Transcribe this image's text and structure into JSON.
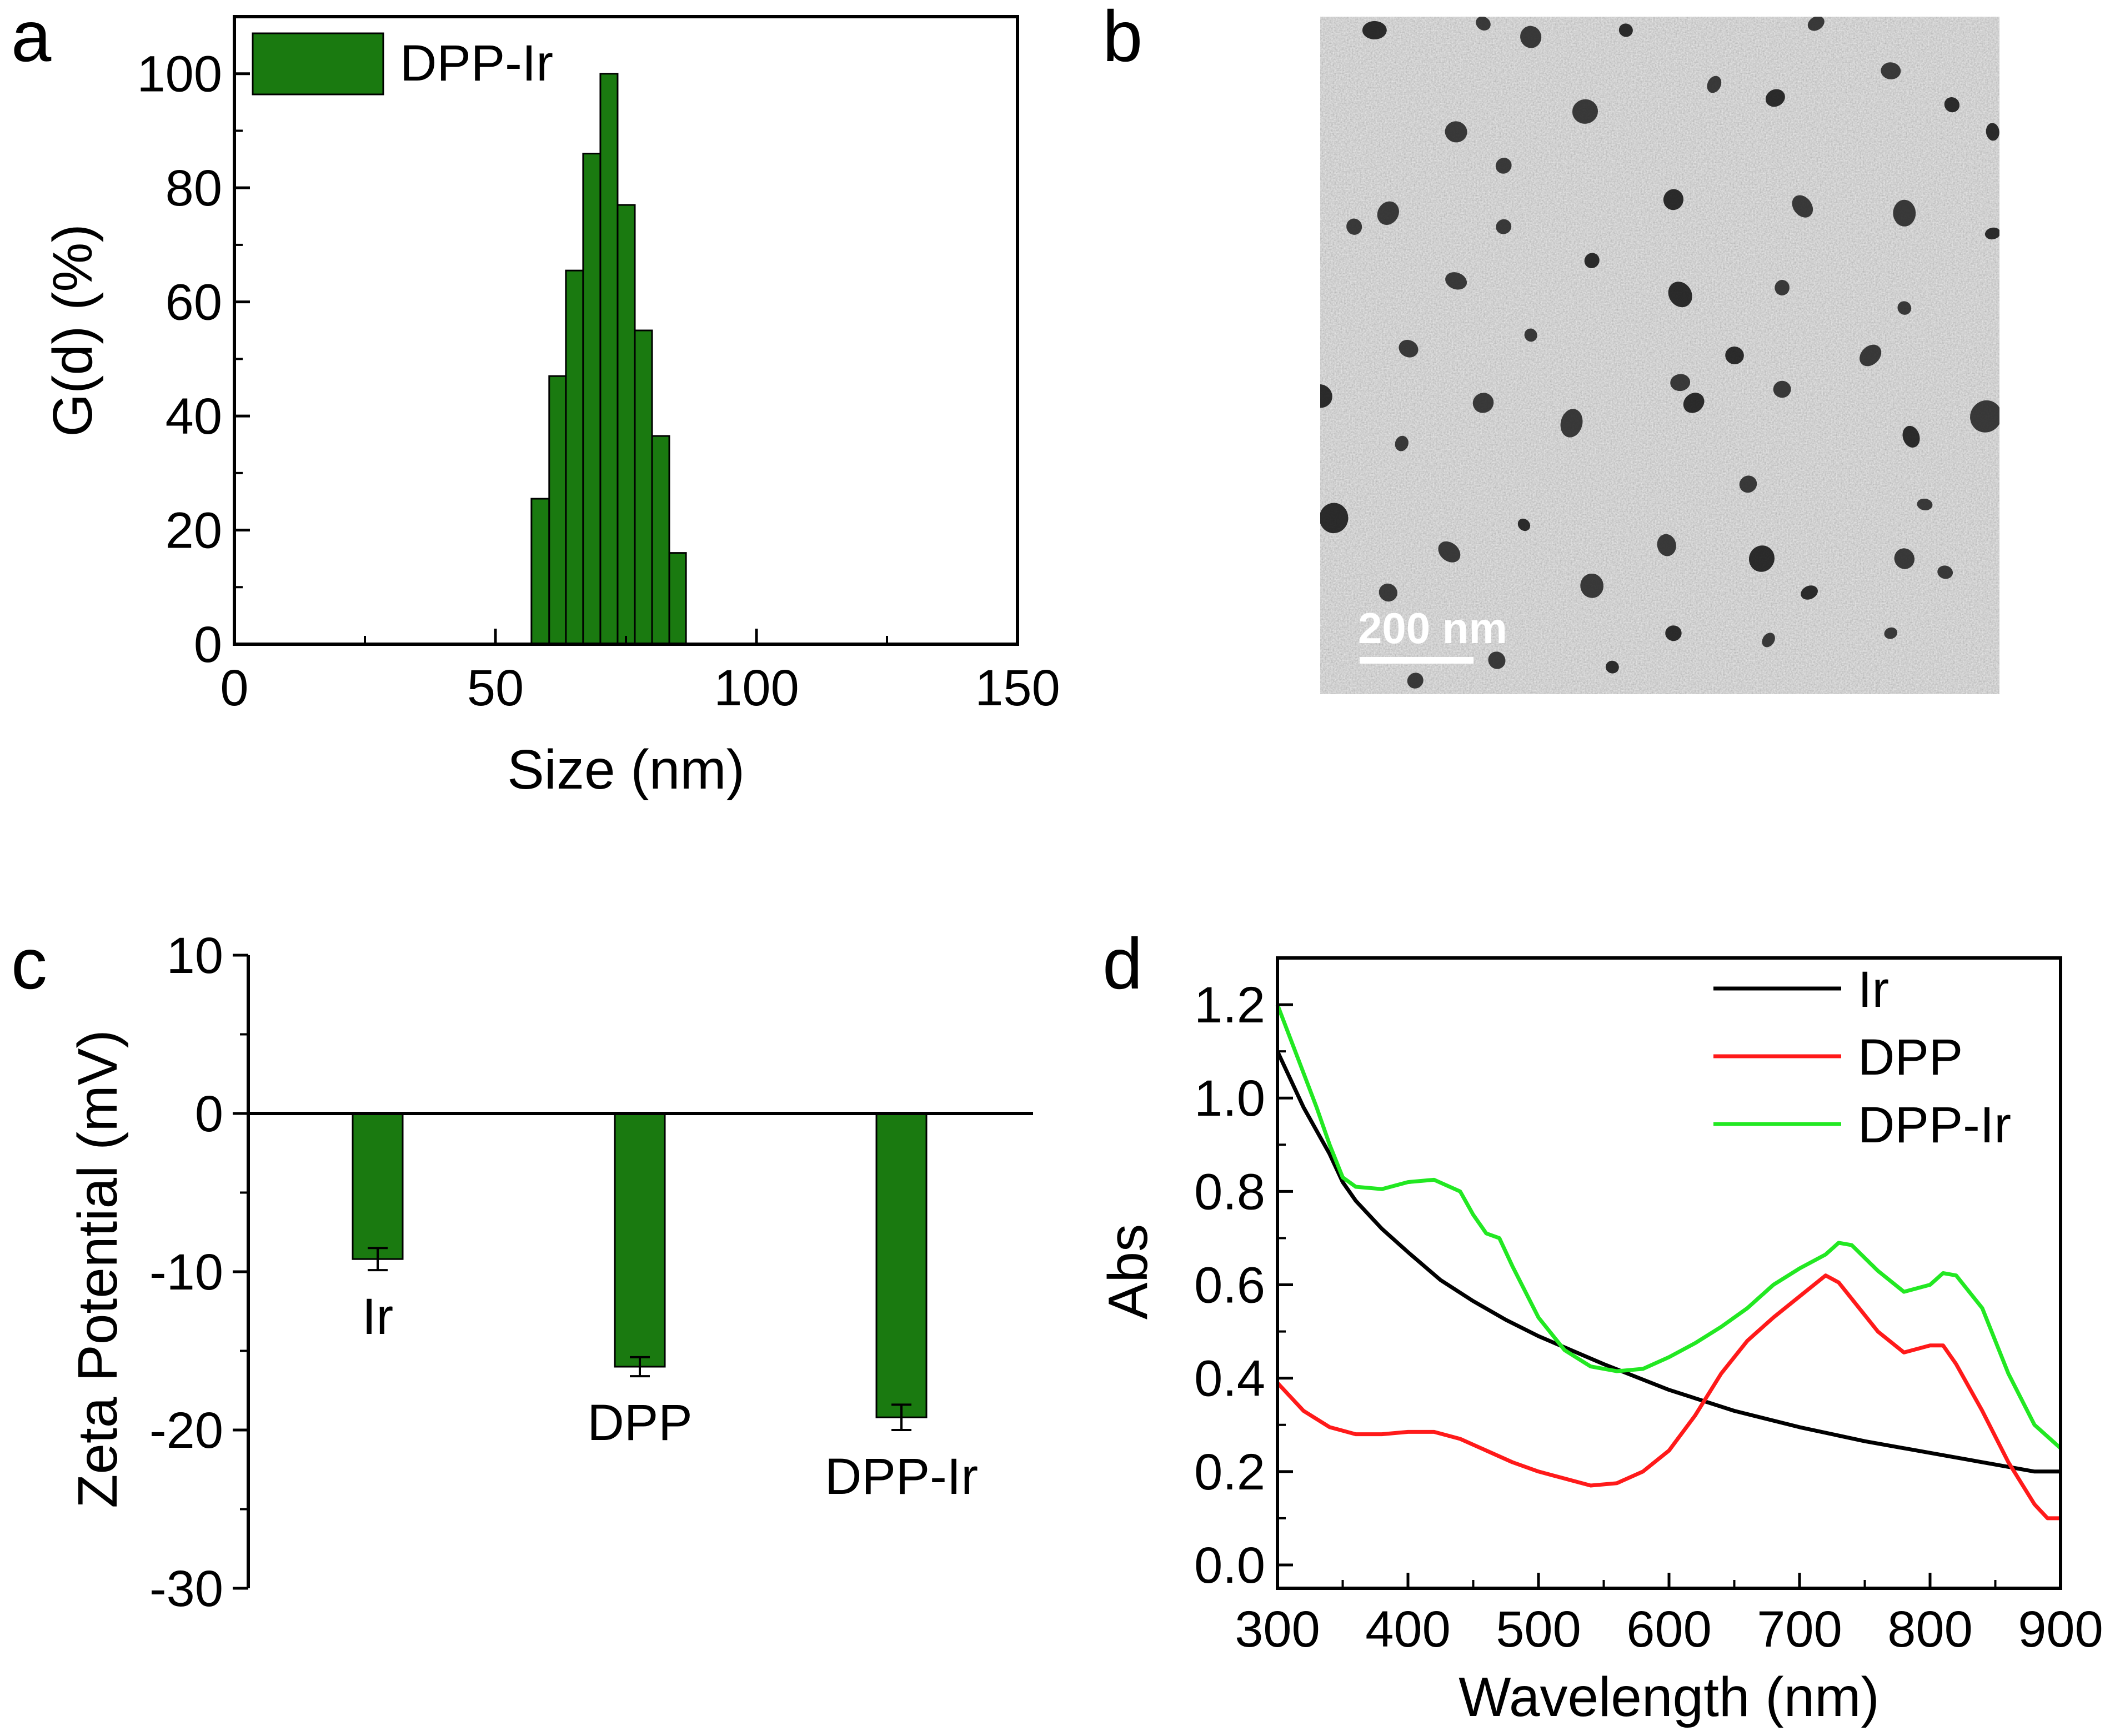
{
  "colors": {
    "bar_green": "#1a7a10",
    "black": "#000000",
    "red": "#ff1a1a",
    "green_line": "#22e822"
  },
  "panels": {
    "a": "a",
    "b": "b",
    "c": "c",
    "d": "d"
  },
  "chart_data": [
    {
      "panel": "a",
      "type": "bar",
      "xlabel": "Size (nm)",
      "ylabel": "G(d) (%)",
      "xlim": [
        0,
        150
      ],
      "ylim": [
        0,
        110
      ],
      "xticks": [
        "0",
        "50",
        "100",
        "150"
      ],
      "yticks": [
        "0",
        "20",
        "40",
        "60",
        "80",
        "100"
      ],
      "legend": [
        "DPP-Ir"
      ],
      "legend_position": "top-left",
      "series": [
        {
          "name": "DPP-Ir",
          "bins": [
            {
              "x0": 56.9,
              "x1": 60.3,
              "value": 25.5
            },
            {
              "x0": 60.3,
              "x1": 63.5,
              "value": 47
            },
            {
              "x0": 63.5,
              "x1": 66.8,
              "value": 65.5
            },
            {
              "x0": 66.8,
              "x1": 70.1,
              "value": 86
            },
            {
              "x0": 70.1,
              "x1": 73.4,
              "value": 100
            },
            {
              "x0": 73.4,
              "x1": 76.7,
              "value": 77
            },
            {
              "x0": 76.7,
              "x1": 80.0,
              "value": 55
            },
            {
              "x0": 80.0,
              "x1": 83.3,
              "value": 36.5
            },
            {
              "x0": 83.3,
              "x1": 86.5,
              "value": 16
            }
          ]
        }
      ]
    },
    {
      "panel": "b",
      "type": "image",
      "scale_bar_label": "200 nm"
    },
    {
      "panel": "c",
      "type": "bar",
      "xlabel": "",
      "ylabel": "Zeta Potential (mV)",
      "ylim": [
        -30,
        10
      ],
      "yticks": [
        "10",
        "0",
        "-10",
        "-20",
        "-30"
      ],
      "categories": [
        "Ir",
        "DPP",
        "DPP-Ir"
      ],
      "values": [
        -9.2,
        -16,
        -19.2
      ],
      "errors": [
        0.7,
        0.6,
        0.8
      ]
    },
    {
      "panel": "d",
      "type": "line",
      "xlabel": "Wavelength (nm)",
      "ylabel": "Abs",
      "xlim": [
        300,
        900
      ],
      "ylim": [
        -0.05,
        1.3
      ],
      "xticks": [
        "300",
        "400",
        "500",
        "600",
        "700",
        "800",
        "900"
      ],
      "yticks": [
        "0.0",
        "0.2",
        "0.4",
        "0.6",
        "0.8",
        "1.0",
        "1.2"
      ],
      "legend_position": "top-right",
      "series": [
        {
          "name": "Ir",
          "color": "#000000",
          "x": [
            300,
            320,
            340,
            350,
            360,
            380,
            400,
            425,
            450,
            475,
            500,
            550,
            600,
            650,
            700,
            750,
            800,
            850,
            880,
            900
          ],
          "y": [
            1.1,
            0.98,
            0.88,
            0.82,
            0.78,
            0.72,
            0.67,
            0.61,
            0.565,
            0.525,
            0.49,
            0.43,
            0.375,
            0.33,
            0.295,
            0.265,
            0.24,
            0.215,
            0.2,
            0.2
          ]
        },
        {
          "name": "DPP",
          "color": "#ff1a1a",
          "x": [
            300,
            320,
            340,
            360,
            380,
            400,
            420,
            440,
            460,
            480,
            500,
            520,
            540,
            560,
            580,
            600,
            620,
            640,
            660,
            680,
            700,
            720,
            730,
            740,
            760,
            780,
            800,
            810,
            820,
            840,
            860,
            880,
            890,
            900
          ],
          "y": [
            0.39,
            0.33,
            0.295,
            0.28,
            0.28,
            0.285,
            0.285,
            0.27,
            0.245,
            0.22,
            0.2,
            0.185,
            0.17,
            0.175,
            0.2,
            0.245,
            0.32,
            0.41,
            0.48,
            0.53,
            0.575,
            0.62,
            0.605,
            0.57,
            0.5,
            0.455,
            0.47,
            0.47,
            0.43,
            0.33,
            0.22,
            0.13,
            0.1,
            0.1
          ]
        },
        {
          "name": "DPP-Ir",
          "color": "#22e822",
          "x": [
            300,
            315,
            330,
            340,
            350,
            360,
            380,
            400,
            420,
            440,
            450,
            460,
            470,
            480,
            500,
            520,
            540,
            560,
            580,
            600,
            620,
            640,
            660,
            680,
            700,
            720,
            730,
            740,
            760,
            780,
            800,
            810,
            820,
            840,
            860,
            880,
            900
          ],
          "y": [
            1.2,
            1.09,
            0.98,
            0.9,
            0.83,
            0.81,
            0.805,
            0.82,
            0.825,
            0.8,
            0.75,
            0.71,
            0.7,
            0.64,
            0.53,
            0.46,
            0.425,
            0.415,
            0.42,
            0.445,
            0.475,
            0.51,
            0.55,
            0.6,
            0.635,
            0.665,
            0.69,
            0.685,
            0.63,
            0.585,
            0.6,
            0.625,
            0.62,
            0.55,
            0.41,
            0.3,
            0.25
          ]
        }
      ]
    }
  ]
}
